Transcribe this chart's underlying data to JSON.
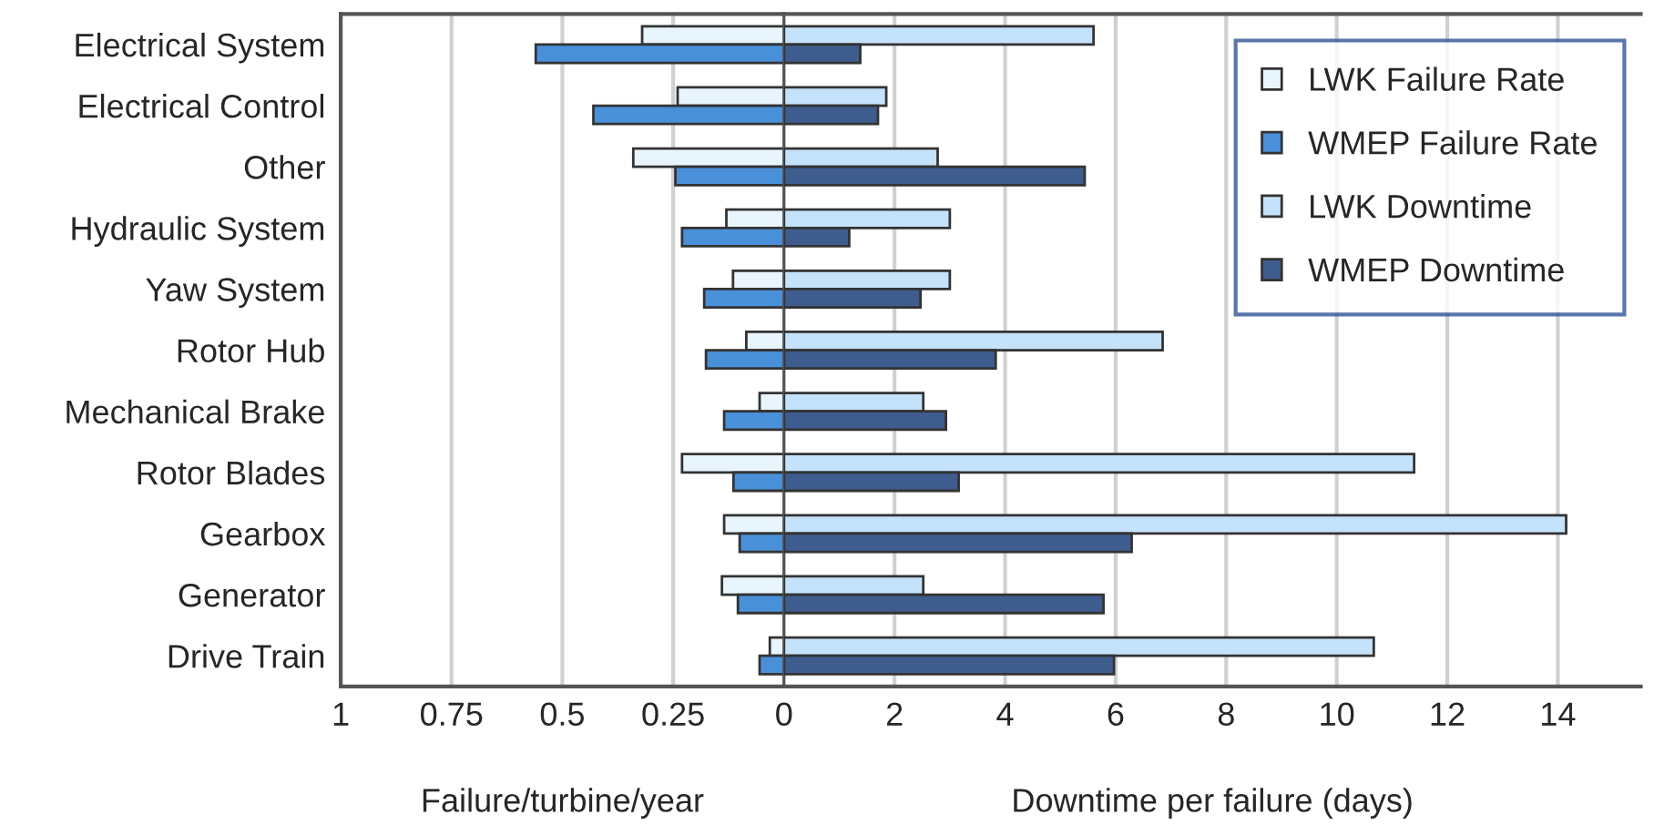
{
  "chart_data": [
    {
      "type": "bar",
      "orientation": "horizontal",
      "xlabel": "Failure/turbine/year",
      "categories": [
        "Electrical System",
        "Electrical Control",
        "Other",
        "Hydraulic System",
        "Yaw System",
        "Rotor Hub",
        "Mechanical Brake",
        "Rotor Blades",
        "Gearbox",
        "Generator",
        "Drive Train"
      ],
      "series": [
        {
          "name": "LWK Failure Rate",
          "color": "#e8f5fd",
          "values": [
            0.32,
            0.24,
            0.34,
            0.13,
            0.115,
            0.085,
            0.055,
            0.23,
            0.135,
            0.14,
            0.032
          ]
        },
        {
          "name": "WMEP Failure Rate",
          "color": "#4a90d9",
          "values": [
            0.56,
            0.43,
            0.245,
            0.23,
            0.18,
            0.176,
            0.135,
            0.114,
            0.1,
            0.104,
            0.055
          ]
        }
      ],
      "xlim": [
        1,
        0
      ],
      "xticks": [
        1,
        0.75,
        0.5,
        0.25,
        {
          "value": 0,
          "label": null
        }
      ],
      "grid": "x",
      "legend": "top right"
    },
    {
      "type": "bar",
      "orientation": "horizontal",
      "xlabel": "Downtime per failure (days)",
      "categories": [
        null,
        null,
        null,
        null,
        null,
        null,
        null,
        null,
        null,
        null,
        null
      ],
      "series": [
        {
          "name": "LWK Downtime",
          "color": "#c5e2fb",
          "values": [
            5.6,
            1.85,
            2.78,
            3.0,
            3.0,
            6.85,
            2.52,
            11.4,
            14.15,
            2.52,
            10.67
          ]
        },
        {
          "name": "WMEP Downtime",
          "color": "#3e5d8e",
          "values": [
            1.38,
            1.7,
            5.44,
            1.18,
            2.47,
            3.83,
            2.93,
            3.16,
            6.29,
            5.78,
            5.97
          ]
        }
      ],
      "xlim": [
        0,
        15.5
      ],
      "xticks": [
        0,
        2,
        4,
        6,
        8,
        10,
        12,
        14
      ],
      "grid": "x",
      "tick_labels": "x",
      "legend": "top right"
    }
  ]
}
